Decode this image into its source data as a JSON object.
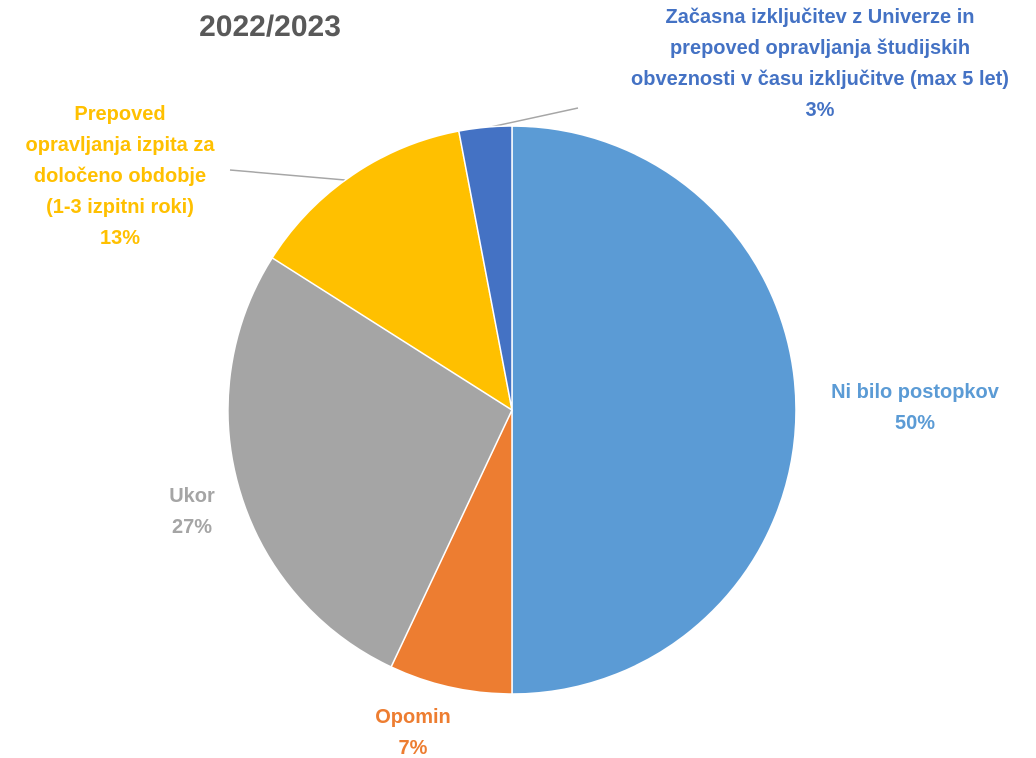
{
  "chart_data": {
    "type": "pie",
    "title": "2022/2023",
    "categories": [
      "Ni bilo postopkov",
      "Opomin",
      "Ukor",
      "Prepoved\nopravljanja izpita za\ndoločeno obdobje\n(1-3 izpitni roki)",
      "Začasna izključitev z Univerze in\nprepoved opravljanja študijskih\nobveznosti v času izključitve (max 5 let)"
    ],
    "values": [
      50,
      7,
      27,
      13,
      3
    ],
    "value_labels": [
      "50%",
      "7%",
      "27%",
      "13%",
      "3%"
    ],
    "colors": [
      "#5b9bd5",
      "#ed7d31",
      "#a5a5a5",
      "#ffc000",
      "#4472c4"
    ]
  }
}
